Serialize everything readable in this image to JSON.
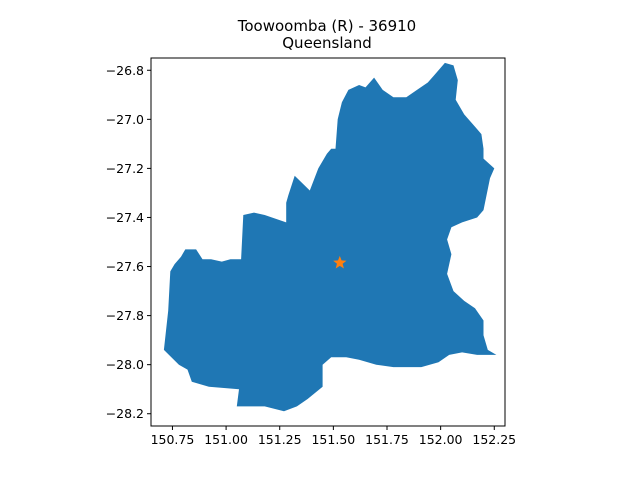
{
  "map": {
    "title_line1": "Toowoomba (R) - 36910",
    "title_line2": "Queensland",
    "region_color": "#1f77b4",
    "marker_color": "#ff7f0e",
    "marker_icon": "star-icon",
    "xlim": [
      150.65,
      152.3
    ],
    "ylim": [
      -28.25,
      -26.75
    ],
    "x_ticks": [
      {
        "value": 150.75,
        "label": "150.75"
      },
      {
        "value": 151.0,
        "label": "151.00"
      },
      {
        "value": 151.25,
        "label": "151.25"
      },
      {
        "value": 151.5,
        "label": "151.50"
      },
      {
        "value": 151.75,
        "label": "151.75"
      },
      {
        "value": 152.0,
        "label": "152.00"
      },
      {
        "value": 152.25,
        "label": "152.25"
      }
    ],
    "y_ticks": [
      {
        "value": -26.8,
        "label": "−26.8"
      },
      {
        "value": -27.0,
        "label": "−27.0"
      },
      {
        "value": -27.2,
        "label": "−27.2"
      },
      {
        "value": -27.4,
        "label": "−27.4"
      },
      {
        "value": -27.6,
        "label": "−27.6"
      },
      {
        "value": -27.8,
        "label": "−27.8"
      },
      {
        "value": -28.0,
        "label": "−28.0"
      },
      {
        "value": -28.2,
        "label": "−28.2"
      }
    ],
    "marker": {
      "lon": 151.53,
      "lat": -27.585
    },
    "boundary": [
      [
        150.71,
        -27.94
      ],
      [
        150.73,
        -27.78
      ],
      [
        150.74,
        -27.62
      ],
      [
        150.76,
        -27.59
      ],
      [
        150.79,
        -27.56
      ],
      [
        150.81,
        -27.53
      ],
      [
        150.86,
        -27.53
      ],
      [
        150.89,
        -27.57
      ],
      [
        150.93,
        -27.57
      ],
      [
        150.98,
        -27.58
      ],
      [
        151.02,
        -27.57
      ],
      [
        151.07,
        -27.57
      ],
      [
        151.08,
        -27.39
      ],
      [
        151.13,
        -27.38
      ],
      [
        151.18,
        -27.39
      ],
      [
        151.28,
        -27.42
      ],
      [
        151.28,
        -27.34
      ],
      [
        151.29,
        -27.31
      ],
      [
        151.32,
        -27.23
      ],
      [
        151.39,
        -27.29
      ],
      [
        151.43,
        -27.2
      ],
      [
        151.47,
        -27.14
      ],
      [
        151.49,
        -27.12
      ],
      [
        151.51,
        -27.12
      ],
      [
        151.52,
        -27.0
      ],
      [
        151.54,
        -26.93
      ],
      [
        151.57,
        -26.88
      ],
      [
        151.62,
        -26.86
      ],
      [
        151.65,
        -26.87
      ],
      [
        151.69,
        -26.83
      ],
      [
        151.73,
        -26.88
      ],
      [
        151.78,
        -26.91
      ],
      [
        151.84,
        -26.91
      ],
      [
        151.89,
        -26.88
      ],
      [
        151.94,
        -26.85
      ],
      [
        151.97,
        -26.82
      ],
      [
        152.02,
        -26.77
      ],
      [
        152.06,
        -26.78
      ],
      [
        152.08,
        -26.84
      ],
      [
        152.07,
        -26.92
      ],
      [
        152.11,
        -26.98
      ],
      [
        152.17,
        -27.04
      ],
      [
        152.19,
        -27.06
      ],
      [
        152.2,
        -27.12
      ],
      [
        152.2,
        -27.16
      ],
      [
        152.25,
        -27.2
      ],
      [
        152.23,
        -27.24
      ],
      [
        152.2,
        -27.37
      ],
      [
        152.17,
        -27.4
      ],
      [
        152.1,
        -27.42
      ],
      [
        152.05,
        -27.44
      ],
      [
        152.03,
        -27.49
      ],
      [
        152.05,
        -27.55
      ],
      [
        152.03,
        -27.63
      ],
      [
        152.06,
        -27.7
      ],
      [
        152.11,
        -27.74
      ],
      [
        152.16,
        -27.77
      ],
      [
        152.2,
        -27.82
      ],
      [
        152.2,
        -27.88
      ],
      [
        152.22,
        -27.94
      ],
      [
        152.26,
        -27.96
      ],
      [
        152.17,
        -27.96
      ],
      [
        152.1,
        -27.95
      ],
      [
        152.04,
        -27.96
      ],
      [
        151.99,
        -27.99
      ],
      [
        151.91,
        -28.01
      ],
      [
        151.84,
        -28.01
      ],
      [
        151.78,
        -28.01
      ],
      [
        151.7,
        -28.0
      ],
      [
        151.62,
        -27.98
      ],
      [
        151.56,
        -27.97
      ],
      [
        151.49,
        -27.97
      ],
      [
        151.45,
        -28.0
      ],
      [
        151.45,
        -28.09
      ],
      [
        151.38,
        -28.14
      ],
      [
        151.33,
        -28.17
      ],
      [
        151.27,
        -28.19
      ],
      [
        151.18,
        -28.17
      ],
      [
        151.1,
        -28.17
      ],
      [
        151.05,
        -28.17
      ],
      [
        151.06,
        -28.1
      ],
      [
        150.92,
        -28.09
      ],
      [
        150.84,
        -28.07
      ],
      [
        150.82,
        -28.02
      ],
      [
        150.78,
        -28.0
      ]
    ]
  }
}
